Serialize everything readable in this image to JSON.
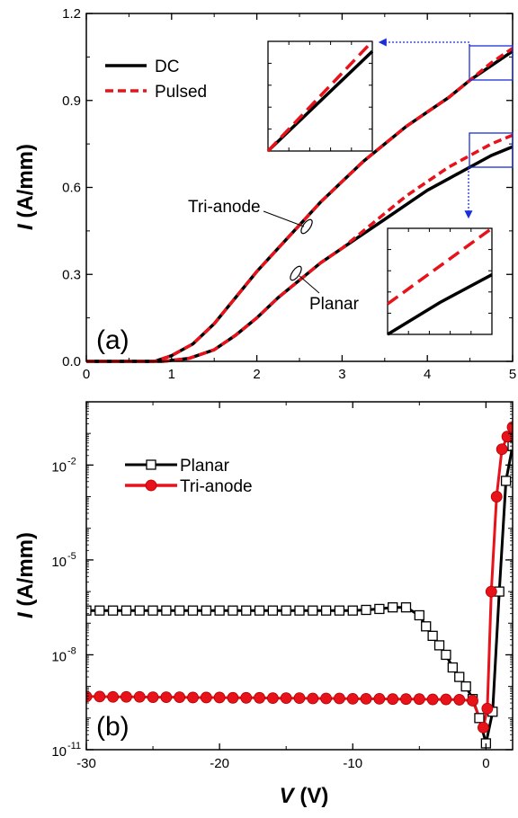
{
  "chart_data": [
    {
      "panel_label": "(a)",
      "type": "line",
      "xlim": [
        0,
        5
      ],
      "ylim": [
        0,
        1.2
      ],
      "xticks": [
        "0",
        "1",
        "2",
        "3",
        "4",
        "5"
      ],
      "yticks": [
        "0.0",
        "0.3",
        "0.6",
        "0.9",
        "1.2"
      ],
      "ylabel_italic": "I",
      "ylabel_rest": " (A/mm)",
      "legend": {
        "position": "top-left",
        "entries": [
          {
            "label": "DC",
            "color": "#000000",
            "dash": "solid"
          },
          {
            "label": "Pulsed",
            "color": "#e8121a",
            "dash": "dashed"
          }
        ]
      },
      "annotations": {
        "tri_anode": "Tri-anode",
        "planar": "Planar"
      },
      "series": [
        {
          "name": "DC",
          "device": "Tri-anode",
          "color": "#000000",
          "x": [
            0,
            0.8,
            1.0,
            1.25,
            1.5,
            1.75,
            2.0,
            2.25,
            2.5,
            2.75,
            3.0,
            3.25,
            3.5,
            3.75,
            4.0,
            4.25,
            4.5,
            4.75,
            5.0
          ],
          "y": [
            0,
            0.0,
            0.02,
            0.06,
            0.13,
            0.22,
            0.31,
            0.39,
            0.47,
            0.55,
            0.62,
            0.69,
            0.75,
            0.81,
            0.86,
            0.91,
            0.97,
            1.02,
            1.07
          ]
        },
        {
          "name": "Pulsed",
          "device": "Tri-anode",
          "color": "#e8121a",
          "x": [
            0,
            0.8,
            1.0,
            1.25,
            1.5,
            1.75,
            2.0,
            2.25,
            2.5,
            2.75,
            3.0,
            3.25,
            3.5,
            3.75,
            4.0,
            4.25,
            4.5,
            4.75,
            5.0
          ],
          "y": [
            0,
            0.0,
            0.02,
            0.06,
            0.13,
            0.22,
            0.31,
            0.39,
            0.47,
            0.55,
            0.62,
            0.69,
            0.75,
            0.81,
            0.86,
            0.91,
            0.97,
            1.03,
            1.08
          ]
        },
        {
          "name": "DC",
          "device": "Planar",
          "color": "#000000",
          "x": [
            0,
            0.9,
            1.2,
            1.5,
            1.75,
            2.0,
            2.25,
            2.5,
            2.75,
            3.0,
            3.25,
            3.5,
            3.75,
            4.0,
            4.25,
            4.5,
            4.75,
            5.0
          ],
          "y": [
            0,
            0.0,
            0.01,
            0.04,
            0.09,
            0.15,
            0.22,
            0.28,
            0.34,
            0.39,
            0.44,
            0.49,
            0.54,
            0.59,
            0.63,
            0.67,
            0.71,
            0.74
          ]
        },
        {
          "name": "Pulsed",
          "device": "Planar",
          "color": "#e8121a",
          "x": [
            0,
            0.9,
            1.2,
            1.5,
            1.75,
            2.0,
            2.25,
            2.5,
            2.75,
            3.0,
            3.25,
            3.5,
            3.75,
            4.0,
            4.25,
            4.5,
            4.75,
            5.0
          ],
          "y": [
            0,
            0.0,
            0.01,
            0.04,
            0.09,
            0.15,
            0.22,
            0.28,
            0.34,
            0.39,
            0.45,
            0.51,
            0.57,
            0.62,
            0.67,
            0.71,
            0.75,
            0.78
          ]
        }
      ],
      "insets": [
        {
          "zoom_of": "Tri-anode",
          "x_range": [
            4.5,
            5.0
          ],
          "y_range": [
            0.97,
            1.08
          ]
        },
        {
          "zoom_of": "Planar",
          "x_range": [
            4.5,
            5.0
          ],
          "y_range": [
            0.7,
            0.78
          ]
        }
      ]
    },
    {
      "panel_label": "(b)",
      "type": "line",
      "yscale": "log",
      "xlim": [
        -30,
        2
      ],
      "ylim_log10": [
        -11,
        0
      ],
      "xticks": [
        "-30",
        "-20",
        "-10",
        "0"
      ],
      "yticks": [
        "10",
        "10",
        "10",
        "10"
      ],
      "ytick_exponents": [
        "-11",
        "-8",
        "-5",
        "-2"
      ],
      "xlabel_italic": "V",
      "xlabel_rest": " (V)",
      "ylabel_italic": "I",
      "ylabel_rest": " (A/mm)",
      "legend": {
        "position": "top-left",
        "entries": [
          {
            "label": "Planar",
            "color": "#000000",
            "marker": "open-square"
          },
          {
            "label": "Tri-anode",
            "color": "#e8121a",
            "marker": "filled-circle"
          }
        ]
      },
      "series": [
        {
          "name": "Planar",
          "color": "#000000",
          "marker": "open-square",
          "x": [
            -30,
            -29,
            -28,
            -27,
            -26,
            -25,
            -24,
            -23,
            -22,
            -21,
            -20,
            -19,
            -18,
            -17,
            -16,
            -15,
            -14,
            -13,
            -12,
            -11,
            -10,
            -9,
            -8,
            -7,
            -6,
            -5,
            -4.5,
            -4,
            -3.5,
            -3,
            -2.5,
            -2,
            -1.5,
            -1,
            -0.5,
            0,
            0.5,
            1,
            1.5,
            2
          ],
          "y_log10": [
            -6.6,
            -6.6,
            -6.6,
            -6.6,
            -6.6,
            -6.6,
            -6.6,
            -6.6,
            -6.6,
            -6.6,
            -6.6,
            -6.6,
            -6.6,
            -6.6,
            -6.6,
            -6.6,
            -6.6,
            -6.6,
            -6.6,
            -6.6,
            -6.6,
            -6.58,
            -6.55,
            -6.5,
            -6.5,
            -6.75,
            -7.1,
            -7.4,
            -7.7,
            -8.0,
            -8.4,
            -8.7,
            -9.0,
            -9.4,
            -10.0,
            -10.8,
            -9.8,
            -6.0,
            -2.5,
            -1.4
          ]
        },
        {
          "name": "Tri-anode",
          "color": "#e8121a",
          "marker": "filled-circle",
          "x": [
            -30,
            -29,
            -28,
            -27,
            -26,
            -25,
            -24,
            -23,
            -22,
            -21,
            -20,
            -19,
            -18,
            -17,
            -16,
            -15,
            -14,
            -13,
            -12,
            -11,
            -10,
            -9,
            -8,
            -7,
            -6,
            -5,
            -4,
            -3,
            -2,
            -1,
            -0.2,
            0.1,
            0.4,
            0.8,
            1.2,
            1.6,
            2
          ],
          "y_log10": [
            -9.32,
            -9.32,
            -9.33,
            -9.33,
            -9.33,
            -9.34,
            -9.34,
            -9.34,
            -9.35,
            -9.35,
            -9.35,
            -9.36,
            -9.36,
            -9.36,
            -9.37,
            -9.37,
            -9.37,
            -9.38,
            -9.38,
            -9.38,
            -9.39,
            -9.39,
            -9.39,
            -9.4,
            -9.4,
            -9.4,
            -9.41,
            -9.41,
            -9.42,
            -9.45,
            -10.3,
            -9.7,
            -6.0,
            -3.0,
            -1.5,
            -1.1,
            -0.8
          ]
        }
      ]
    }
  ]
}
